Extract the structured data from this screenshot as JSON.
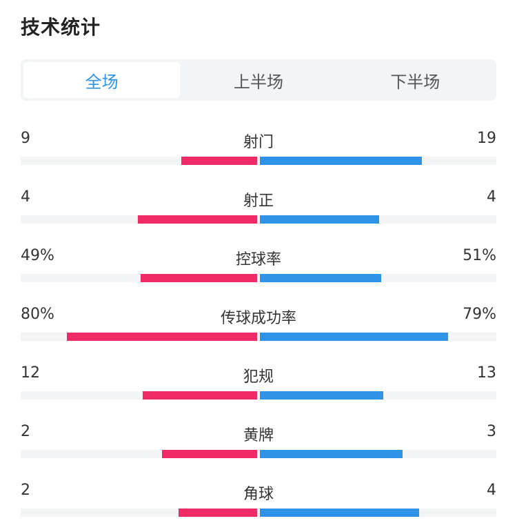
{
  "title": "技术统计",
  "tabs": [
    {
      "label": "全场",
      "active": true
    },
    {
      "label": "上半场",
      "active": false
    },
    {
      "label": "下半场",
      "active": false
    }
  ],
  "colors": {
    "home": "#ee2b66",
    "away": "#2f93e8",
    "track": "#f3f4f6",
    "active_tab": "#2f93e8"
  },
  "stats": [
    {
      "label": "射门",
      "home": "9",
      "away": "19",
      "home_share": 0.32,
      "away_share": 0.68
    },
    {
      "label": "射正",
      "home": "4",
      "away": "4",
      "home_share": 0.5,
      "away_share": 0.5
    },
    {
      "label": "控球率",
      "home": "49%",
      "away": "51%",
      "home_share": 0.49,
      "away_share": 0.51
    },
    {
      "label": "传球成功率",
      "home": "80%",
      "away": "79%",
      "home_share": 0.8,
      "away_share": 0.79
    },
    {
      "label": "犯规",
      "home": "12",
      "away": "13",
      "home_share": 0.48,
      "away_share": 0.52
    },
    {
      "label": "黄牌",
      "home": "2",
      "away": "3",
      "home_share": 0.4,
      "away_share": 0.6
    },
    {
      "label": "角球",
      "home": "2",
      "away": "4",
      "home_share": 0.33,
      "away_share": 0.67
    }
  ]
}
